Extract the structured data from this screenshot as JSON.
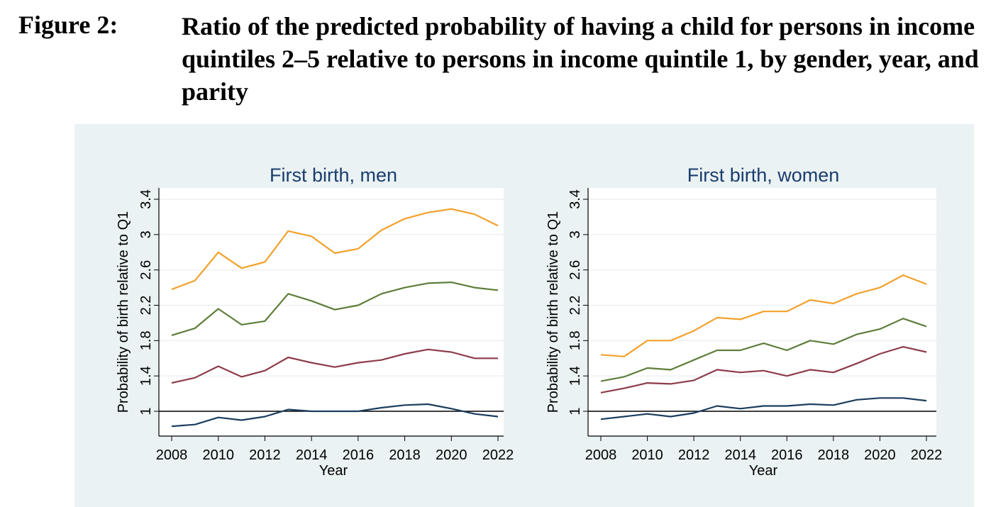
{
  "figure": {
    "label": "Figure 2:",
    "caption": "Ratio of the predicted probability of having a child for persons in income quintiles 2–5 relative to persons in income quintile 1, by gender, year, and parity"
  },
  "colors": {
    "panel_background": "#eaf2f3",
    "plot_background": "#ffffff",
    "reference_line": "#000000",
    "q2": "#1b3d5e",
    "q3": "#8e3b4a",
    "q4": "#5f7d3a",
    "q5": "#f2a12b"
  },
  "chart_data": [
    {
      "type": "line",
      "title": "First birth, men",
      "xlabel": "Year",
      "ylabel": "Probability of birth relative to Q1",
      "xlim": [
        2008,
        2022
      ],
      "ylim": [
        0.8,
        3.45
      ],
      "xticks": [
        "2008",
        "2010",
        "2012",
        "2014",
        "2016",
        "2018",
        "2020",
        "2022"
      ],
      "yticks": [
        "1",
        "1.4",
        "1.8",
        "2.2",
        "2.6",
        "3",
        "3.4"
      ],
      "reference_line": 1,
      "grid": true,
      "legend": "none",
      "x": [
        2008,
        2009,
        2010,
        2011,
        2012,
        2013,
        2014,
        2015,
        2016,
        2017,
        2018,
        2019,
        2020,
        2021,
        2022
      ],
      "series": [
        {
          "color": "#1b3d5e",
          "values": [
            0.83,
            0.85,
            0.93,
            0.9,
            0.94,
            1.02,
            1.0,
            1.0,
            1.0,
            1.04,
            1.07,
            1.08,
            1.03,
            0.97,
            0.94
          ]
        },
        {
          "color": "#8e3b4a",
          "values": [
            1.32,
            1.38,
            1.51,
            1.39,
            1.46,
            1.61,
            1.55,
            1.5,
            1.55,
            1.58,
            1.65,
            1.7,
            1.67,
            1.6,
            1.6
          ]
        },
        {
          "color": "#5f7d3a",
          "values": [
            1.86,
            1.94,
            2.16,
            1.98,
            2.02,
            2.33,
            2.25,
            2.15,
            2.2,
            2.33,
            2.4,
            2.45,
            2.46,
            2.4,
            2.37
          ]
        },
        {
          "color": "#f2a12b",
          "values": [
            2.38,
            2.48,
            2.8,
            2.62,
            2.69,
            3.04,
            2.98,
            2.79,
            2.84,
            3.05,
            3.18,
            3.25,
            3.29,
            3.23,
            3.1
          ]
        }
      ]
    },
    {
      "type": "line",
      "title": "First birth, women",
      "xlabel": "Year",
      "ylabel": "Probability of birth relative to Q1",
      "xlim": [
        2008,
        2022
      ],
      "ylim": [
        0.8,
        3.45
      ],
      "xticks": [
        "2008",
        "2010",
        "2012",
        "2014",
        "2016",
        "2018",
        "2020",
        "2022"
      ],
      "yticks": [
        "1",
        "1.4",
        "1.8",
        "2.2",
        "2.6",
        "3",
        "3.4"
      ],
      "reference_line": 1,
      "grid": true,
      "legend": "none",
      "x": [
        2008,
        2009,
        2010,
        2011,
        2012,
        2013,
        2014,
        2015,
        2016,
        2017,
        2018,
        2019,
        2020,
        2021,
        2022
      ],
      "series": [
        {
          "color": "#1b3d5e",
          "values": [
            0.91,
            0.94,
            0.97,
            0.94,
            0.98,
            1.06,
            1.03,
            1.06,
            1.06,
            1.08,
            1.07,
            1.13,
            1.15,
            1.15,
            1.12
          ]
        },
        {
          "color": "#8e3b4a",
          "values": [
            1.21,
            1.26,
            1.32,
            1.31,
            1.35,
            1.47,
            1.44,
            1.46,
            1.4,
            1.47,
            1.44,
            1.54,
            1.65,
            1.73,
            1.67
          ]
        },
        {
          "color": "#5f7d3a",
          "values": [
            1.34,
            1.39,
            1.49,
            1.47,
            1.58,
            1.69,
            1.69,
            1.77,
            1.69,
            1.8,
            1.76,
            1.87,
            1.93,
            2.05,
            1.96
          ]
        },
        {
          "color": "#f2a12b",
          "values": [
            1.64,
            1.62,
            1.8,
            1.8,
            1.91,
            2.06,
            2.04,
            2.13,
            2.13,
            2.26,
            2.22,
            2.33,
            2.4,
            2.54,
            2.44
          ]
        }
      ]
    }
  ]
}
